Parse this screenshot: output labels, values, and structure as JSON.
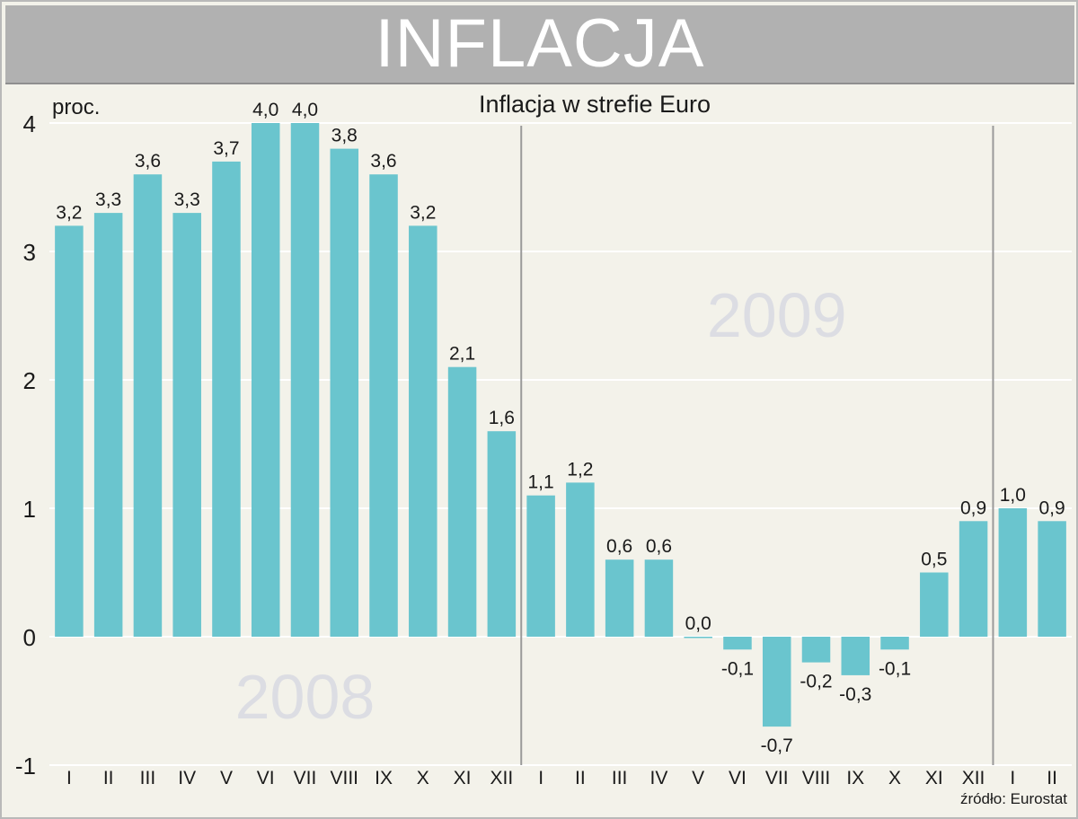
{
  "header": {
    "title": "INFLACJA"
  },
  "chart_data": {
    "type": "bar",
    "title": "Inflacja w strefie Euro",
    "ylabel": "proc.",
    "ylim": [
      -1,
      4
    ],
    "yticks": [
      "4",
      "3",
      "2",
      "1",
      "0",
      "-1"
    ],
    "grid": true,
    "categories": [
      "I",
      "II",
      "III",
      "IV",
      "V",
      "VI",
      "VII",
      "VIII",
      "IX",
      "X",
      "XI",
      "XII",
      "I",
      "II",
      "III",
      "IV",
      "V",
      "VI",
      "VII",
      "VIII",
      "IX",
      "X",
      "XI",
      "XII",
      "I",
      "II"
    ],
    "values": [
      3.2,
      3.3,
      3.6,
      3.3,
      3.7,
      4.0,
      4.0,
      3.8,
      3.6,
      3.2,
      2.1,
      1.6,
      1.1,
      1.2,
      0.6,
      0.6,
      0.0,
      -0.1,
      -0.7,
      -0.2,
      -0.3,
      -0.1,
      0.5,
      0.9,
      1.0,
      0.9
    ],
    "data_labels": [
      "3,2",
      "3,3",
      "3,6",
      "3,3",
      "3,7",
      "4,0",
      "4,0",
      "3,8",
      "3,6",
      "3,2",
      "2,1",
      "1,6",
      "1,1",
      "1,2",
      "0,6",
      "0,6",
      "0,0",
      "-0,1",
      "-0,7",
      "-0,2",
      "-0,3",
      "-0,1",
      "0,5",
      "0,9",
      "1,0",
      "0,9"
    ],
    "year_labels": [
      "2008",
      "2009"
    ],
    "year_dividers_after": [
      12,
      24
    ],
    "bar_color": "#6ac5ce",
    "year_label_color": "#dcdde3",
    "divider_color": "#9a9a9a"
  },
  "footer": {
    "source": "źródło: Eurostat"
  }
}
